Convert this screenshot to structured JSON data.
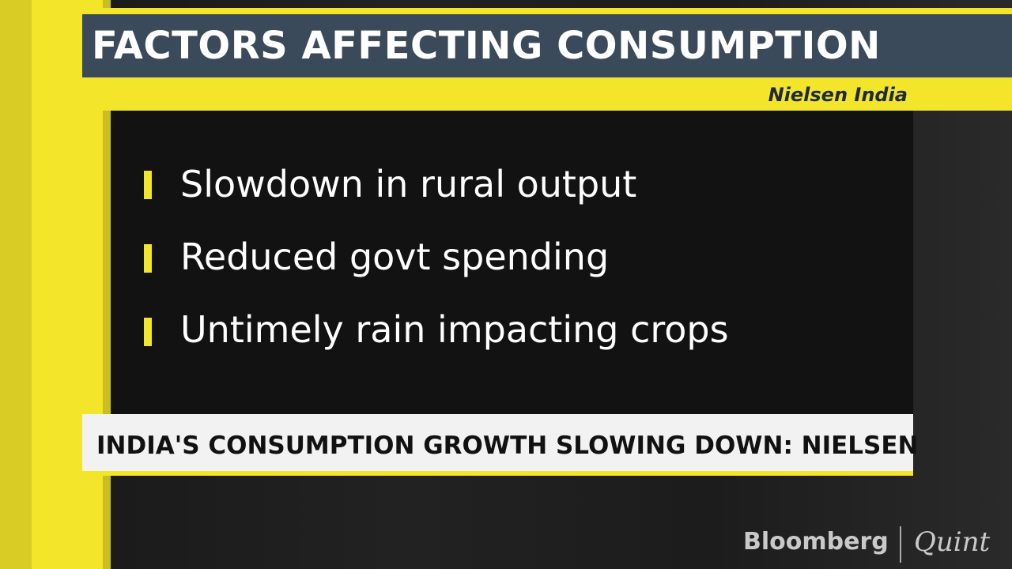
{
  "header": {
    "title": "FACTORS AFFECTING CONSUMPTION",
    "source": "Nielsen India"
  },
  "bullets": [
    "Slowdown in rural output",
    "Reduced govt spending",
    "Untimely rain impacting crops"
  ],
  "ticker": "INDIA'S CONSUMPTION GROWTH SLOWING DOWN: NIELSEN",
  "logo": {
    "brand": "Bloomberg",
    "partner": "Quint"
  }
}
